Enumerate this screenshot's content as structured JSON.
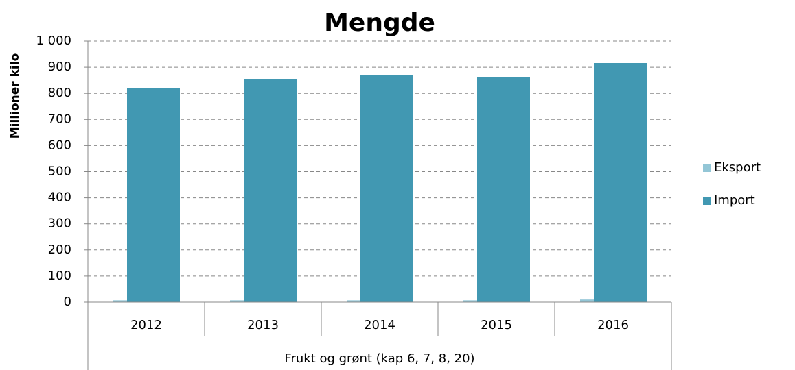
{
  "chart_data": {
    "type": "bar",
    "title": "Mengde",
    "y_label": "Millioner kilo",
    "group_label": "Frukt og grønt (kap 6, 7, 8, 20)",
    "categories": [
      "2012",
      "2013",
      "2014",
      "2015",
      "2016"
    ],
    "series": [
      {
        "name": "Eksport",
        "color": "#93c6d6",
        "values": [
          7,
          7,
          7,
          7,
          10
        ]
      },
      {
        "name": "Import",
        "color": "#4198b2",
        "values": [
          821,
          853,
          871,
          863,
          916
        ]
      }
    ],
    "ylim": [
      0,
      1000
    ],
    "yticks": [
      0,
      100,
      200,
      300,
      400,
      500,
      600,
      700,
      800,
      900,
      {
        "value": 1000,
        "label": "1 000"
      }
    ],
    "grid": true,
    "legend": "right"
  }
}
